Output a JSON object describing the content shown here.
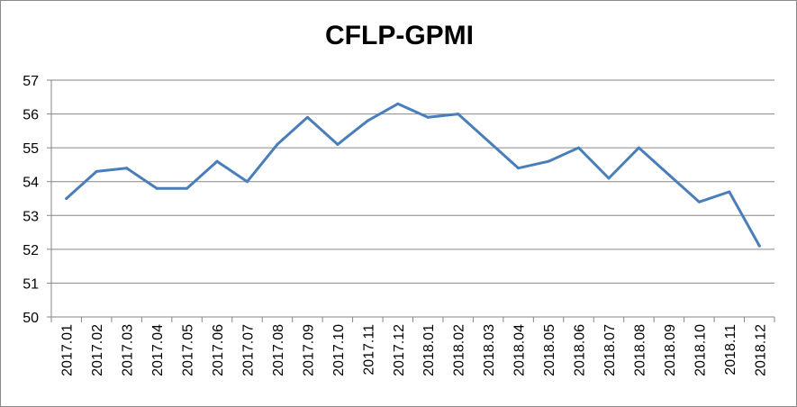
{
  "chart_data": {
    "type": "line",
    "title": "CFLP-GPMI",
    "xlabel": "",
    "ylabel": "",
    "categories": [
      "2017.01",
      "2017.02",
      "2017.03",
      "2017.04",
      "2017.05",
      "2017.06",
      "2017.07",
      "2017.08",
      "2017.09",
      "2017.10",
      "2017.11",
      "2017.12",
      "2018.01",
      "2018.02",
      "2018.03",
      "2018.04",
      "2018.05",
      "2018.06",
      "2018.07",
      "2018.08",
      "2018.09",
      "2018.10",
      "2018.11",
      "2018.12"
    ],
    "series": [
      {
        "values": [
          53.5,
          54.3,
          54.4,
          53.8,
          53.8,
          54.6,
          54.0,
          55.1,
          55.9,
          55.1,
          55.8,
          56.3,
          55.9,
          56.0,
          55.2,
          54.4,
          54.6,
          55.0,
          54.1,
          55.0,
          54.2,
          53.4,
          53.7,
          52.1
        ]
      }
    ],
    "ylim": [
      50,
      57
    ],
    "yticks": [
      50,
      51,
      52,
      53,
      54,
      55,
      56,
      57
    ],
    "grid": true,
    "legend": "none",
    "line_color": "#4a7ebb",
    "grid_color": "#868686"
  }
}
